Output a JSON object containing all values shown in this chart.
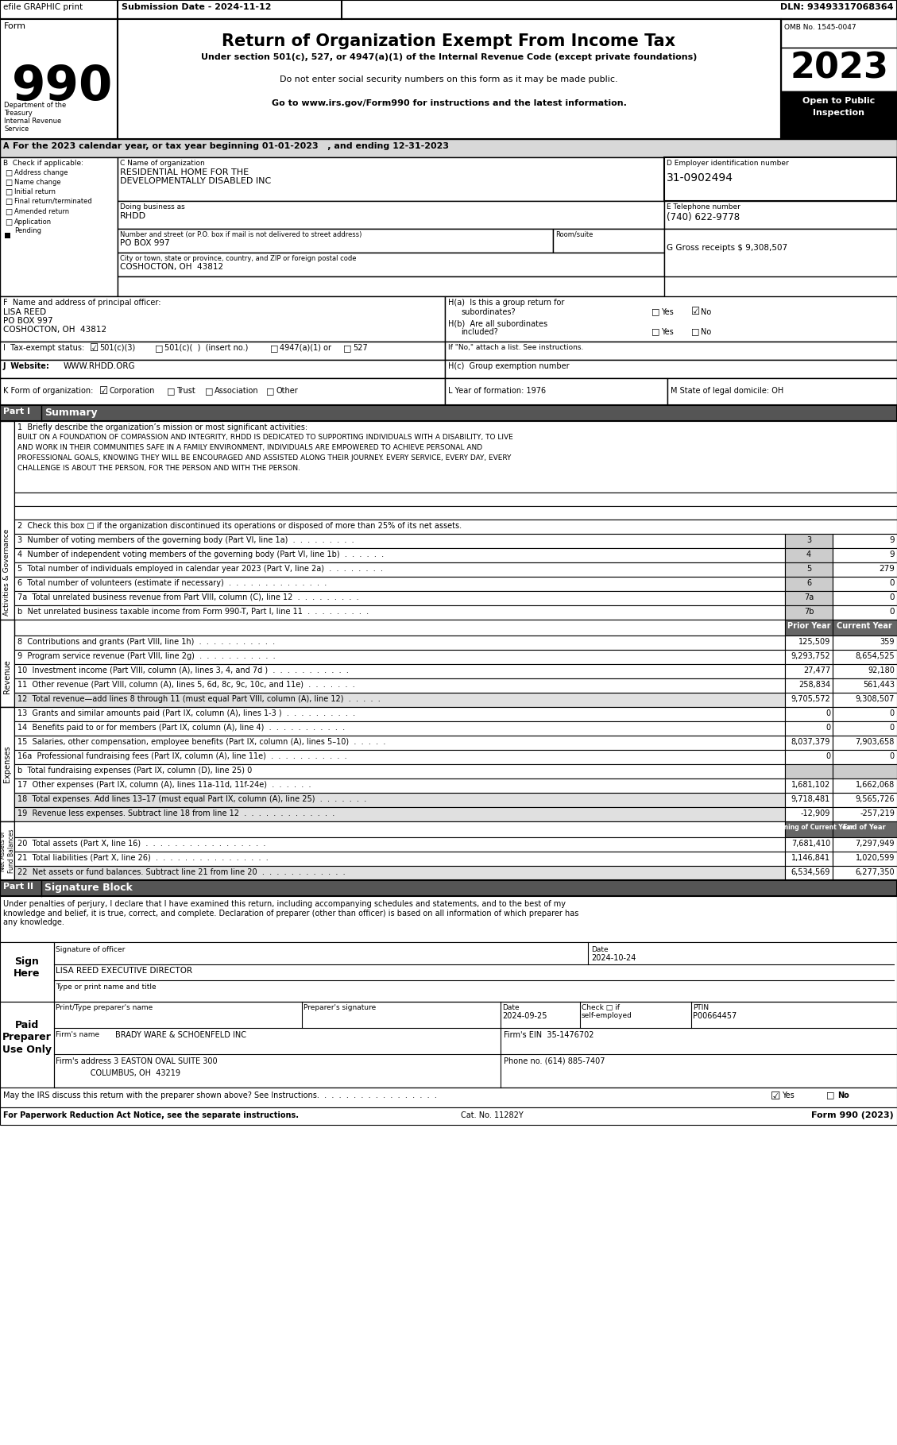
{
  "bg": "white",
  "form_number": "990",
  "year": "2023",
  "omb": "OMB No. 1545-0047",
  "open_public": "Open to Public\nInspection",
  "efile_text": "efile GRAPHIC print",
  "submission_date": "Submission Date - 2024-11-12",
  "dln": "DLN: 93493317068364",
  "title": "Return of Organization Exempt From Income Tax",
  "subtitle1": "Under section 501(c), 527, or 4947(a)(1) of the Internal Revenue Code (except private foundations)",
  "subtitle2": "Do not enter social security numbers on this form as it may be made public.",
  "subtitle3": "Go to www.irs.gov/Form990 for instructions and the latest information.",
  "dept": "Department of the\nTreasury\nInternal Revenue\nService",
  "tax_year_line": "For the 2023 calendar year, or tax year beginning 01-01-2023   , and ending 12-31-2023",
  "org_name1": "RESIDENTIAL HOME FOR THE",
  "org_name2": "DEVELOPMENTALLY DISABLED INC",
  "dba": "RHDD",
  "address": "PO BOX 997",
  "city": "COSHOCTON, OH  43812",
  "ein": "31-0902494",
  "phone": "(740) 622-9778",
  "gross": "G Gross receipts $ 9,308,507",
  "principal_name": "LISA REED",
  "principal_addr": "PO BOX 997",
  "principal_city": "COSHOCTON, OH  43812",
  "mission_lines": [
    "BUILT ON A FOUNDATION OF COMPASSION AND INTEGRITY, RHDD IS DEDICATED TO SUPPORTING INDIVIDUALS WITH A DISABILITY, TO LIVE",
    "AND WORK IN THEIR COMMUNITIES SAFE IN A FAMILY ENVIRONMENT, INDIVIDUALS ARE EMPOWERED TO ACHIEVE PERSONAL AND",
    "PROFESSIONAL GOALS, KNOWING THEY WILL BE ENCOURAGED AND ASSISTED ALONG THEIR JOURNEY. EVERY SERVICE, EVERY DAY, EVERY",
    "CHALLENGE IS ABOUT THE PERSON, FOR THE PERSON AND WITH THE PERSON."
  ],
  "lines_3_7": [
    [
      "3",
      "3  Number of voting members of the governing body (Part VI, line 1a)  .  .  .  .  .  .  .  .  .",
      "9"
    ],
    [
      "4",
      "4  Number of independent voting members of the governing body (Part VI, line 1b)  .  .  .  .  .  .",
      "9"
    ],
    [
      "5",
      "5  Total number of individuals employed in calendar year 2023 (Part V, line 2a)  .  .  .  .  .  .  .  .",
      "279"
    ],
    [
      "6",
      "6  Total number of volunteers (estimate if necessary)  .  .  .  .  .  .  .  .  .  .  .  .  .  .",
      "0"
    ],
    [
      "7a",
      "7a  Total unrelated business revenue from Part VIII, column (C), line 12  .  .  .  .  .  .  .  .  .",
      "0"
    ],
    [
      "7b",
      "b  Net unrelated business taxable income from Form 990-T, Part I, line 11  .  .  .  .  .  .  .  .  .",
      "0"
    ]
  ],
  "rev_lines": [
    [
      "8  Contributions and grants (Part VIII, line 1h)  .  .  .  .  .  .  .  .  .  .  .",
      "125,509",
      "359"
    ],
    [
      "9  Program service revenue (Part VIII, line 2g)  .  .  .  .  .  .  .  .  .  .  .",
      "9,293,752",
      "8,654,525"
    ],
    [
      "10  Investment income (Part VIII, column (A), lines 3, 4, and 7d )  .  .  .  .  .  .  .  .  .  .  .",
      "27,477",
      "92,180"
    ],
    [
      "11  Other revenue (Part VIII, column (A), lines 5, 6d, 8c, 9c, 10c, and 11e)  .  .  .  .  .  .  .",
      "258,834",
      "561,443"
    ],
    [
      "12  Total revenue—add lines 8 through 11 (must equal Part VIII, column (A), line 12)  .  .  .  .  .",
      "9,705,572",
      "9,308,507"
    ]
  ],
  "exp_lines": [
    [
      "13  Grants and similar amounts paid (Part IX, column (A), lines 1-3 )  .  .  .  .  .  .  .  .  .  .",
      "0",
      "0"
    ],
    [
      "14  Benefits paid to or for members (Part IX, column (A), line 4)  .  .  .  .  .  .  .  .  .  .  .",
      "0",
      "0"
    ],
    [
      "15  Salaries, other compensation, employee benefits (Part IX, column (A), lines 5–10)  .  .  .  .  .",
      "8,037,379",
      "7,903,658"
    ],
    [
      "16a  Professional fundraising fees (Part IX, column (A), line 11e)  .  .  .  .  .  .  .  .  .  .  .",
      "0",
      "0"
    ],
    [
      "b  Total fundraising expenses (Part IX, column (D), line 25) 0",
      "",
      ""
    ],
    [
      "17  Other expenses (Part IX, column (A), lines 11a-11d, 11f-24e)  .  .  .  .  .  .",
      "1,681,102",
      "1,662,068"
    ],
    [
      "18  Total expenses. Add lines 13–17 (must equal Part IX, column (A), line 25)  .  .  .  .  .  .  .",
      "9,718,481",
      "9,565,726"
    ]
  ],
  "line19_text": "19  Revenue less expenses. Subtract line 18 from line 12  .  .  .  .  .  .  .  .  .  .  .  .  .",
  "line19_prior": "-12,909",
  "line19_curr": "-257,219",
  "net_lines": [
    [
      "20  Total assets (Part X, line 16)  .  .  .  .  .  .  .  .  .  .  .  .  .  .  .  .  .",
      "7,681,410",
      "7,297,949"
    ],
    [
      "21  Total liabilities (Part X, line 26)  .  .  .  .  .  .  .  .  .  .  .  .  .  .  .  .",
      "1,146,841",
      "1,020,599"
    ],
    [
      "22  Net assets or fund balances. Subtract line 21 from line 20  .  .  .  .  .  .  .  .  .  .  .  .",
      "6,534,569",
      "6,277,350"
    ]
  ],
  "perjury": "Under penalties of perjury, I declare that I have examined this return, including accompanying schedules and statements, and to the best of my\nknowledge and belief, it is true, correct, and complete. Declaration of preparer (other than officer) is based on all information of which preparer has\nany knowledge.",
  "sig_date": "2024-10-24",
  "sig_name": "LISA REED EXECUTIVE DIRECTOR",
  "prep_date": "2024-09-25",
  "prep_ptin": "P00664457",
  "prep_firm": "BRADY WARE & SCHOENFELD INC",
  "prep_ein": "35-1476702",
  "prep_addr": "Firm's address 3 EASTON OVAL SUITE 300",
  "prep_city": "COLUMBUS, OH  43219",
  "prep_phone": "(614) 885-7407",
  "cat_no": "Cat. No. 11282Y"
}
